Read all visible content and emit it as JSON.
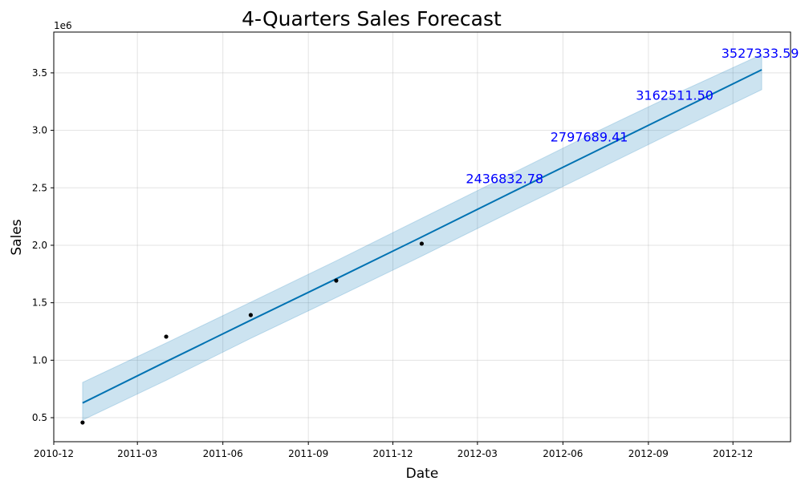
{
  "chart_data": {
    "type": "forecast",
    "title": "4-Quarters Sales Forecast",
    "x_label": "Date",
    "y_label": "Sales",
    "y_offset_label": "1e6",
    "x": [
      "2011-01",
      "2011-04",
      "2011-07",
      "2011-10",
      "2012-01",
      "2012-04",
      "2012-07",
      "2012-10",
      "2013-01"
    ],
    "series": [
      {
        "style": "line",
        "color": "#0072B2",
        "values": [
          628000,
          988000,
          1348000,
          1708000,
          2072000,
          2436832.78,
          2797689.41,
          3162511.5,
          3527333.59
        ],
        "value_labels": [
          null,
          null,
          null,
          null,
          null,
          "2436832.78",
          "2797689.41",
          "3162511.50",
          "3527333.59"
        ],
        "label_color": "#0000ff"
      },
      {
        "style": "points",
        "color": "#000000",
        "values": [
          458000,
          1205000,
          1393000,
          1693000,
          2014000,
          null,
          null,
          null,
          null
        ]
      }
    ],
    "interval": {
      "color": "#0072B2",
      "upper": [
        807000,
        1150000,
        1505000,
        1865000,
        2235000,
        2600000,
        2965000,
        3320000,
        3660000
      ],
      "lower": [
        479000,
        825000,
        1190000,
        1545000,
        1905000,
        2270000,
        2630000,
        2995000,
        3354000
      ]
    },
    "xlim": [
      "2010-12",
      "2013-02"
    ],
    "xticks": [
      "2010-12",
      "2011-03",
      "2011-06",
      "2011-09",
      "2011-12",
      "2012-03",
      "2012-06",
      "2012-09",
      "2012-12"
    ],
    "ylim": [
      291000,
      3855000
    ],
    "yticks": [
      {
        "value": 500000,
        "label": "0.5"
      },
      {
        "value": 1000000,
        "label": "1.0"
      },
      {
        "value": 1500000,
        "label": "1.5"
      },
      {
        "value": 2000000,
        "label": "2.0"
      },
      {
        "value": 2500000,
        "label": "2.5"
      },
      {
        "value": 3000000,
        "label": "3.0"
      },
      {
        "value": 3500000,
        "label": "3.5"
      }
    ],
    "grid": true
  }
}
